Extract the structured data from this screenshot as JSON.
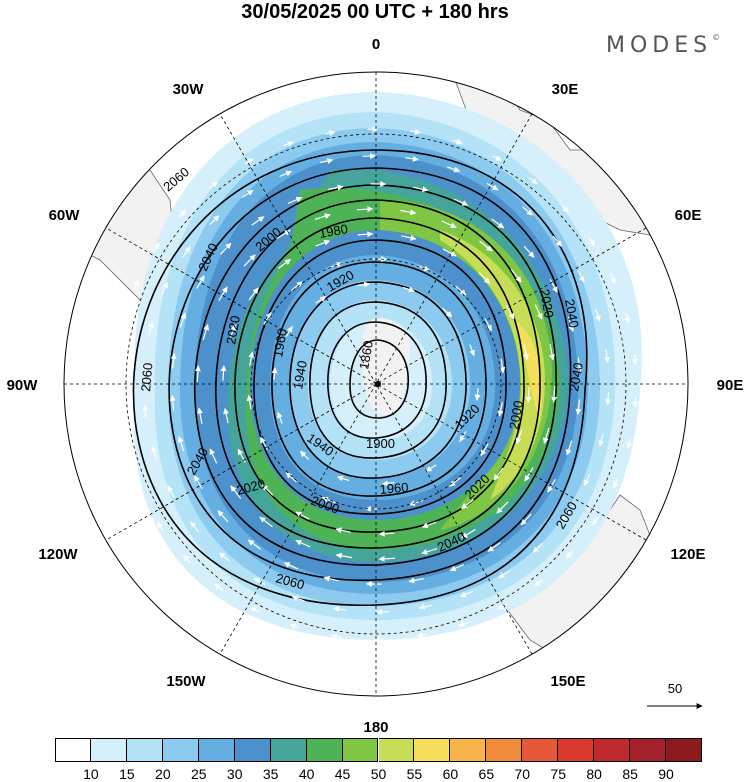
{
  "title": "30/05/2025  00 UTC  + 180 hrs",
  "brand": "MODES",
  "brand_mark": "©",
  "longitude_labels": {
    "top": "0",
    "tr30": "30E",
    "tr60": "60E",
    "right": "90E",
    "br120": "120E",
    "br150": "150E",
    "bottom": "180",
    "bl150": "150W",
    "bl120": "120W",
    "left": "90W",
    "tl60": "60W",
    "tl30": "30W"
  },
  "contour_labels": [
    "1860",
    "1900",
    "1920",
    "1940",
    "1960",
    "1980",
    "2000",
    "2020",
    "2040",
    "2060"
  ],
  "vector_reference": {
    "value": "50",
    "icon": "arrow-right-icon"
  },
  "colorbar": {
    "ticks": [
      "10",
      "15",
      "20",
      "25",
      "30",
      "35",
      "40",
      "45",
      "50",
      "55",
      "60",
      "65",
      "70",
      "75",
      "80",
      "85",
      "90"
    ],
    "colors": [
      "#ffffff",
      "#d6f0fb",
      "#b4e2f7",
      "#8ccaf0",
      "#64aee2",
      "#4c91cc",
      "#45a59a",
      "#4eb356",
      "#7ec644",
      "#c6dd55",
      "#f6df5a",
      "#f6b44a",
      "#ef8a3a",
      "#e6583a",
      "#d8382e",
      "#c02a2f",
      "#a5202d",
      "#8c1a1c"
    ]
  }
}
